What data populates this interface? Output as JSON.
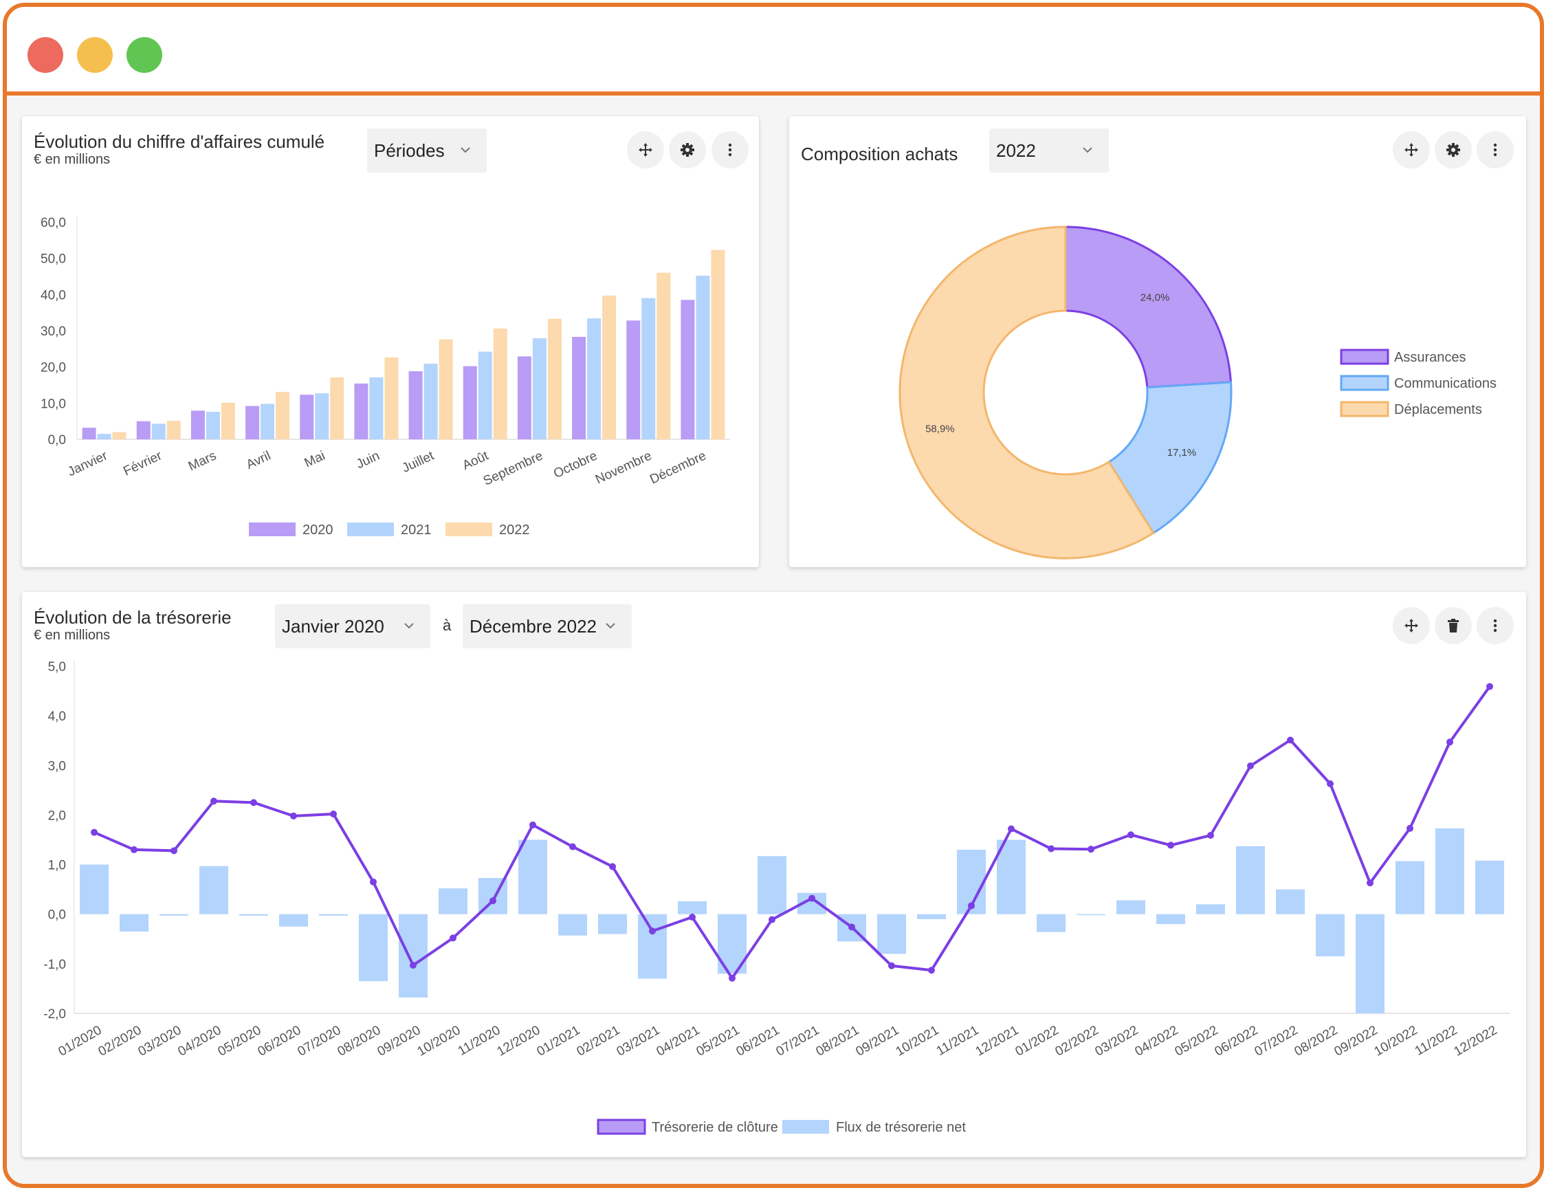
{
  "window": {
    "controls": [
      "close",
      "minimize",
      "maximize"
    ]
  },
  "revenue_card": {
    "title": "Évolution du chiffre d'affaires cumulé",
    "subtitle": "€ en millions",
    "period_select": "Périodes",
    "icons": [
      "move-icon",
      "gear-icon",
      "more-vertical-icon"
    ]
  },
  "purchases_card": {
    "title": "Composition achats",
    "year_select": "2022",
    "icons": [
      "move-icon",
      "gear-icon",
      "more-vertical-icon"
    ]
  },
  "treasury_card": {
    "title": "Évolution de la trésorerie",
    "subtitle": "€ en millions",
    "from_select": "Janvier 2020",
    "to_label": "à",
    "to_select": "Décembre 2022",
    "icons": [
      "move-icon",
      "trash-icon",
      "more-vertical-icon"
    ]
  },
  "chart_data": [
    {
      "type": "bar",
      "title": "Évolution du chiffre d'affaires cumulé",
      "subtitle": "€ en millions",
      "categories": [
        "Janvier",
        "Février",
        "Mars",
        "Avril",
        "Mai",
        "Juin",
        "Juillet",
        "Août",
        "Septembre",
        "Octobre",
        "Novembre",
        "Décembre"
      ],
      "series": [
        {
          "name": "2020",
          "color": "#B89CF5",
          "values": [
            3.2,
            5.0,
            7.9,
            9.2,
            12.3,
            15.4,
            18.8,
            20.2,
            22.9,
            28.3,
            32.8,
            38.5
          ]
        },
        {
          "name": "2021",
          "color": "#B3D4FC",
          "values": [
            1.5,
            4.3,
            7.6,
            9.8,
            12.7,
            17.1,
            20.9,
            24.2,
            27.9,
            33.4,
            39.0,
            45.2
          ]
        },
        {
          "name": "2022",
          "color": "#FDD9AE",
          "values": [
            2.0,
            5.1,
            10.1,
            13.1,
            17.1,
            22.6,
            27.6,
            30.6,
            33.3,
            39.7,
            46.0,
            52.3
          ]
        }
      ],
      "ylim": [
        0,
        60
      ],
      "yticks": [
        "0,0",
        "10,0",
        "20,0",
        "30,0",
        "40,0",
        "50,0",
        "60,0"
      ],
      "legend": "bottom"
    },
    {
      "type": "pie",
      "title": "Composition achats",
      "donut": true,
      "slices": [
        {
          "name": "Assurances",
          "value": 24.0,
          "label": "24,0%",
          "fill": "#B89CF5",
          "stroke": "#7B3FE4"
        },
        {
          "name": "Communications",
          "value": 17.1,
          "label": "17,1%",
          "fill": "#B3D4FC",
          "stroke": "#62A8F5"
        },
        {
          "name": "Déplacements",
          "value": 58.9,
          "label": "58,9%",
          "fill": "#FDD9AE",
          "stroke": "#F3B66A"
        }
      ],
      "legend": "right"
    },
    {
      "type": "bar",
      "title": "Évolution de la trésorerie",
      "subtitle": "€ en millions",
      "categories": [
        "01/2020",
        "02/2020",
        "03/2020",
        "04/2020",
        "05/2020",
        "06/2020",
        "07/2020",
        "08/2020",
        "09/2020",
        "10/2020",
        "11/2020",
        "12/2020",
        "01/2021",
        "02/2021",
        "03/2021",
        "04/2021",
        "05/2021",
        "06/2021",
        "07/2021",
        "08/2021",
        "09/2021",
        "10/2021",
        "11/2021",
        "12/2021",
        "01/2022",
        "02/2022",
        "03/2022",
        "04/2022",
        "05/2022",
        "06/2022",
        "07/2022",
        "08/2022",
        "09/2022",
        "10/2022",
        "11/2022",
        "12/2022"
      ],
      "series": [
        {
          "name": "Flux de trésorerie net",
          "type": "bar",
          "color": "#B3D4FC",
          "values": [
            1.0,
            -0.35,
            -0.03,
            0.97,
            -0.03,
            -0.25,
            -0.03,
            -1.35,
            -1.68,
            0.52,
            0.73,
            1.5,
            -0.43,
            -0.4,
            -1.3,
            0.26,
            -1.2,
            1.17,
            0.43,
            -0.55,
            -0.8,
            -0.1,
            1.3,
            1.5,
            -0.36,
            -0.02,
            0.28,
            -0.2,
            0.2,
            1.37,
            0.5,
            -0.85,
            -2.0,
            1.07,
            1.73,
            1.08
          ]
        },
        {
          "name": "Trésorerie de clôture",
          "type": "line",
          "color": "#7B3FE4",
          "values": [
            1.65,
            1.3,
            1.28,
            2.28,
            2.25,
            1.98,
            2.02,
            0.65,
            -1.03,
            -0.48,
            0.27,
            1.8,
            1.36,
            0.96,
            -0.34,
            -0.06,
            -1.29,
            -0.11,
            0.32,
            -0.26,
            -1.04,
            -1.13,
            0.17,
            1.72,
            1.32,
            1.31,
            1.6,
            1.39,
            1.59,
            2.99,
            3.51,
            2.63,
            0.63,
            1.73,
            3.47,
            4.59
          ]
        }
      ],
      "ylim": [
        -2,
        5
      ],
      "yticks": [
        "-2,0",
        "-1,0",
        "0,0",
        "1,0",
        "2,0",
        "3,0",
        "4,0",
        "5,0"
      ],
      "legend": "bottom"
    }
  ]
}
